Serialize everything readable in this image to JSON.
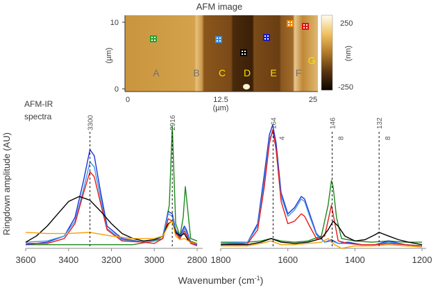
{
  "afm": {
    "title": "AFM image",
    "y_axis_label": "(µm)",
    "x_axis_label": "(µm)",
    "y_ticks": [
      "10",
      "0"
    ],
    "x_ticks": [
      "0",
      "12.5",
      "25"
    ],
    "colorbar_ticks": [
      "250",
      "-250"
    ],
    "colorbar_unit": "(nm)",
    "regions": [
      {
        "letter": "A",
        "color": "#707070"
      },
      {
        "letter": "B",
        "color": "#707070"
      },
      {
        "letter": "C",
        "color": "#ffe000"
      },
      {
        "letter": "D",
        "color": "#ffe000"
      },
      {
        "letter": "E",
        "color": "#ffe000"
      },
      {
        "letter": "F",
        "color": "#707070"
      },
      {
        "letter": "G",
        "color": "#ffe000"
      }
    ],
    "markers": [
      {
        "color": "#2ca02c"
      },
      {
        "color": "#3a8fe0"
      },
      {
        "color": "#000000"
      },
      {
        "color": "#1a1ad0"
      },
      {
        "color": "#f08a00"
      },
      {
        "color": "#e01010"
      }
    ]
  },
  "ylabel": "Ringdown amplitude (AU)",
  "xlabel": "Wavenumber (cm",
  "xlabel_sup": "-1",
  "xlabel_end": ")",
  "left_annotation_line1": "AFM-IR",
  "left_annotation_line2": "spectra",
  "series_colors": {
    "green": "#1a8a1a",
    "blue": "#1c2fd6",
    "lightblue": "#3a9ae8",
    "red": "#e81818",
    "black": "#000000",
    "orange": "#f5a000"
  },
  "chart_data": [
    {
      "type": "line",
      "panel": "left",
      "title": "",
      "xlabel": "Wavenumber (cm-1)",
      "ylabel": "Ringdown amplitude (AU)",
      "xlim": [
        3600,
        2800
      ],
      "ylim": [
        0,
        1
      ],
      "x_ticks": [
        3600,
        3400,
        3200,
        3000,
        2800
      ],
      "x_tick_labels": [
        "3600",
        "3400",
        "3200",
        "3000",
        "2800"
      ],
      "markers": [
        {
          "x": 3300,
          "label": "3300"
        },
        {
          "x": 2916,
          "label": "2916"
        }
      ],
      "series": [
        {
          "name": "green",
          "color": "#1a8a1a",
          "x": [
            3600,
            3500,
            3400,
            3300,
            3200,
            3100,
            3000,
            2960,
            2930,
            2916,
            2900,
            2880,
            2865,
            2855,
            2830,
            2800
          ],
          "y": [
            0.03,
            0.03,
            0.03,
            0.03,
            0.03,
            0.03,
            0.06,
            0.08,
            0.35,
            0.99,
            0.2,
            0.1,
            0.25,
            0.5,
            0.08,
            0.06
          ]
        },
        {
          "name": "blue",
          "color": "#1c2fd6",
          "x": [
            3600,
            3500,
            3420,
            3370,
            3330,
            3300,
            3280,
            3250,
            3220,
            3150,
            3050,
            3000,
            2960,
            2935,
            2916,
            2900,
            2880,
            2860,
            2850,
            2830,
            2800
          ],
          "y": [
            0.03,
            0.05,
            0.1,
            0.25,
            0.55,
            0.8,
            0.75,
            0.45,
            0.18,
            0.08,
            0.05,
            0.06,
            0.1,
            0.3,
            0.28,
            0.15,
            0.1,
            0.18,
            0.15,
            0.05,
            0.03
          ]
        },
        {
          "name": "lightblue",
          "color": "#3a9ae8",
          "x": [
            3600,
            3500,
            3420,
            3370,
            3330,
            3300,
            3280,
            3250,
            3220,
            3150,
            3050,
            3000,
            2960,
            2935,
            2916,
            2900,
            2880,
            2860,
            2850,
            2830,
            2800
          ],
          "y": [
            0.05,
            0.06,
            0.1,
            0.22,
            0.48,
            0.7,
            0.66,
            0.4,
            0.16,
            0.07,
            0.05,
            0.06,
            0.1,
            0.28,
            0.26,
            0.14,
            0.09,
            0.16,
            0.13,
            0.05,
            0.04
          ]
        },
        {
          "name": "red",
          "color": "#e81818",
          "x": [
            3600,
            3500,
            3420,
            3370,
            3330,
            3300,
            3280,
            3250,
            3220,
            3150,
            3050,
            3000,
            2960,
            2935,
            2916,
            2900,
            2880,
            2860,
            2850,
            2830,
            2800
          ],
          "y": [
            0.04,
            0.04,
            0.08,
            0.2,
            0.45,
            0.62,
            0.58,
            0.36,
            0.15,
            0.06,
            0.05,
            0.04,
            0.08,
            0.24,
            0.22,
            0.12,
            0.08,
            0.14,
            0.11,
            0.04,
            0.02
          ]
        },
        {
          "name": "black",
          "color": "#000000",
          "x": [
            3600,
            3550,
            3500,
            3450,
            3400,
            3350,
            3300,
            3250,
            3200,
            3150,
            3100,
            3050,
            3000,
            2960,
            2935,
            2916,
            2900,
            2880,
            2860,
            2840,
            2820,
            2800
          ],
          "y": [
            0.05,
            0.1,
            0.18,
            0.28,
            0.38,
            0.42,
            0.39,
            0.3,
            0.2,
            0.12,
            0.08,
            0.06,
            0.07,
            0.1,
            0.2,
            0.22,
            0.13,
            0.1,
            0.12,
            0.06,
            0.05,
            0.04
          ]
        },
        {
          "name": "orange",
          "color": "#f5a000",
          "x": [
            3600,
            3500,
            3400,
            3300,
            3200,
            3100,
            3000,
            2960,
            2930,
            2916,
            2900,
            2880,
            2860,
            2830,
            2800
          ],
          "y": [
            0.13,
            0.12,
            0.12,
            0.13,
            0.1,
            0.08,
            0.08,
            0.1,
            0.2,
            0.22,
            0.1,
            0.07,
            0.08,
            0.05,
            0.04
          ]
        }
      ]
    },
    {
      "type": "line",
      "panel": "right",
      "title": "",
      "xlabel": "Wavenumber (cm-1)",
      "ylabel": "",
      "xlim": [
        1800,
        1200
      ],
      "ylim": [
        0,
        1
      ],
      "x_ticks": [
        1800,
        1600,
        1400,
        1200
      ],
      "x_tick_labels": [
        "1800",
        "1600",
        "1400",
        "1200"
      ],
      "markers": [
        {
          "x": 1644,
          "label_line1": "164",
          "label_line2": "4"
        },
        {
          "x": 1468,
          "label_line1": "146",
          "label_line2": "8"
        },
        {
          "x": 1328,
          "label_line1": "132",
          "label_line2": "8"
        }
      ],
      "series": [
        {
          "name": "green",
          "color": "#1a8a1a",
          "x": [
            1800,
            1720,
            1680,
            1650,
            1620,
            1580,
            1540,
            1500,
            1480,
            1470,
            1465,
            1455,
            1440,
            1400,
            1350,
            1300,
            1250,
            1200
          ],
          "y": [
            0.05,
            0.05,
            0.06,
            0.08,
            0.06,
            0.05,
            0.06,
            0.1,
            0.35,
            0.55,
            0.5,
            0.25,
            0.08,
            0.06,
            0.05,
            0.06,
            0.05,
            0.05
          ]
        },
        {
          "name": "blue",
          "color": "#1c2fd6",
          "x": [
            1800,
            1720,
            1690,
            1670,
            1655,
            1645,
            1635,
            1620,
            1600,
            1580,
            1560,
            1550,
            1535,
            1515,
            1490,
            1470,
            1450,
            1420,
            1380,
            1340,
            1300,
            1250,
            1200
          ],
          "y": [
            0.03,
            0.05,
            0.2,
            0.6,
            0.92,
            1.0,
            0.85,
            0.45,
            0.28,
            0.33,
            0.42,
            0.4,
            0.28,
            0.12,
            0.05,
            0.07,
            0.04,
            0.05,
            0.03,
            0.03,
            0.06,
            0.03,
            0.02
          ]
        },
        {
          "name": "lightblue",
          "color": "#3a9ae8",
          "x": [
            1800,
            1720,
            1690,
            1670,
            1655,
            1645,
            1635,
            1620,
            1600,
            1580,
            1560,
            1550,
            1535,
            1515,
            1490,
            1470,
            1450,
            1420,
            1380,
            1340,
            1300,
            1250,
            1200
          ],
          "y": [
            0.04,
            0.05,
            0.18,
            0.55,
            0.88,
            0.95,
            0.8,
            0.42,
            0.26,
            0.31,
            0.4,
            0.38,
            0.26,
            0.11,
            0.05,
            0.06,
            0.04,
            0.04,
            0.03,
            0.03,
            0.05,
            0.03,
            0.02
          ]
        },
        {
          "name": "red",
          "color": "#e81818",
          "x": [
            1800,
            1720,
            1690,
            1670,
            1655,
            1645,
            1635,
            1620,
            1600,
            1580,
            1560,
            1550,
            1535,
            1515,
            1490,
            1470,
            1450,
            1420,
            1380,
            1340,
            1300,
            1250,
            1200
          ],
          "y": [
            0.03,
            0.04,
            0.15,
            0.5,
            0.85,
            0.96,
            0.8,
            0.38,
            0.2,
            0.22,
            0.28,
            0.26,
            0.18,
            0.08,
            0.1,
            0.35,
            0.06,
            0.04,
            0.03,
            0.03,
            0.04,
            0.03,
            0.02
          ]
        },
        {
          "name": "black",
          "color": "#000000",
          "x": [
            1800,
            1720,
            1680,
            1650,
            1620,
            1580,
            1540,
            1500,
            1480,
            1465,
            1450,
            1430,
            1400,
            1370,
            1340,
            1328,
            1300,
            1270,
            1240,
            1200
          ],
          "y": [
            0.03,
            0.03,
            0.05,
            0.08,
            0.05,
            0.04,
            0.05,
            0.08,
            0.15,
            0.22,
            0.18,
            0.1,
            0.06,
            0.07,
            0.11,
            0.13,
            0.1,
            0.07,
            0.05,
            0.03
          ]
        },
        {
          "name": "orange",
          "color": "#f5a000",
          "x": [
            1800,
            1720,
            1680,
            1650,
            1620,
            1580,
            1540,
            1500,
            1480,
            1470,
            1460,
            1440,
            1400,
            1350,
            1300,
            1250,
            1200
          ],
          "y": [
            0.02,
            0.02,
            0.04,
            0.06,
            0.03,
            0.03,
            0.04,
            0.05,
            0.08,
            0.05,
            0.03,
            0.0,
            0.02,
            0.02,
            0.03,
            0.02,
            0.01
          ]
        }
      ]
    }
  ]
}
